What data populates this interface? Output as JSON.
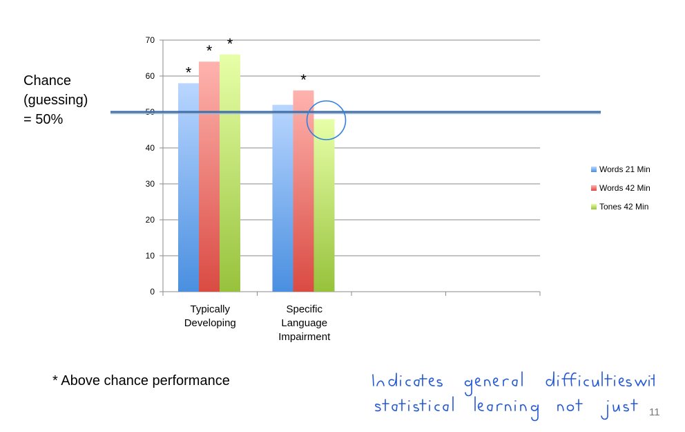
{
  "chance_label": "Chance\n(guessing)\n= 50%",
  "footnote": "* Above chance performance",
  "slide_number": "11",
  "handwritten_note": "Indicates general difficulties with statistical learning not just language",
  "chart_data": {
    "type": "bar",
    "categories": [
      "Typically\nDeveloping",
      "Specific\nLanguage\nImpairment",
      "",
      ""
    ],
    "series": [
      {
        "name": "Words 21 Min",
        "values": [
          58,
          52,
          null,
          null
        ],
        "color": "#4a8fe0",
        "color_light": "#b9d6ff"
      },
      {
        "name": "Words 42 Min",
        "values": [
          64,
          56,
          null,
          null
        ],
        "color": "#d94b43",
        "color_light": "#ffb3ae"
      },
      {
        "name": "Tones 42 Min",
        "values": [
          66,
          48,
          null,
          null
        ],
        "color": "#97c23c",
        "color_light": "#e7ffa8"
      }
    ],
    "significance_marker": "*",
    "significant": [
      [
        true,
        false,
        null,
        null
      ],
      [
        true,
        true,
        null,
        null
      ],
      [
        true,
        false,
        null,
        null
      ]
    ],
    "reference_line": {
      "value": 50,
      "color": "#3f6fa6"
    },
    "ylim": [
      0,
      70
    ],
    "yticks": [
      0,
      10,
      20,
      30,
      40,
      50,
      60,
      70
    ],
    "highlight_circle": {
      "category_index": 1,
      "series_index": 2
    },
    "grid": true,
    "legend": "right",
    "title": "",
    "xlabel": "",
    "ylabel": ""
  }
}
